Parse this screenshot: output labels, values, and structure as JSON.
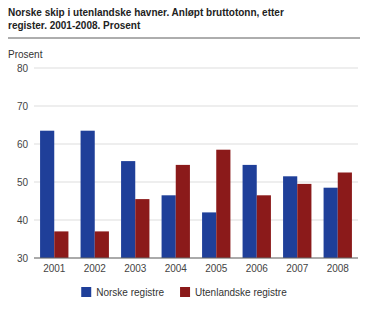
{
  "chart_data": {
    "type": "bar",
    "title": "Norske skip i utenlandske havner. Anløpt bruttotonn, etter",
    "subtitle": "register. 2001-2008. Prosent",
    "y_label": "Prosent",
    "categories": [
      "2001",
      "2002",
      "2003",
      "2004",
      "2005",
      "2006",
      "2007",
      "2008"
    ],
    "series": [
      {
        "name": "Norske registre",
        "color": "#1F3F99",
        "values": [
          63.5,
          63.5,
          55.5,
          46.5,
          42.0,
          54.5,
          51.5,
          48.5
        ]
      },
      {
        "name": "Utenlandske registre",
        "color": "#8B1A1A",
        "values": [
          37.0,
          37.0,
          45.5,
          54.5,
          58.5,
          46.5,
          49.5,
          52.5
        ]
      }
    ],
    "ylim": [
      30,
      80
    ],
    "yticks": [
      30,
      40,
      50,
      60,
      70,
      80
    ],
    "grid": true,
    "legend": "bottom"
  }
}
